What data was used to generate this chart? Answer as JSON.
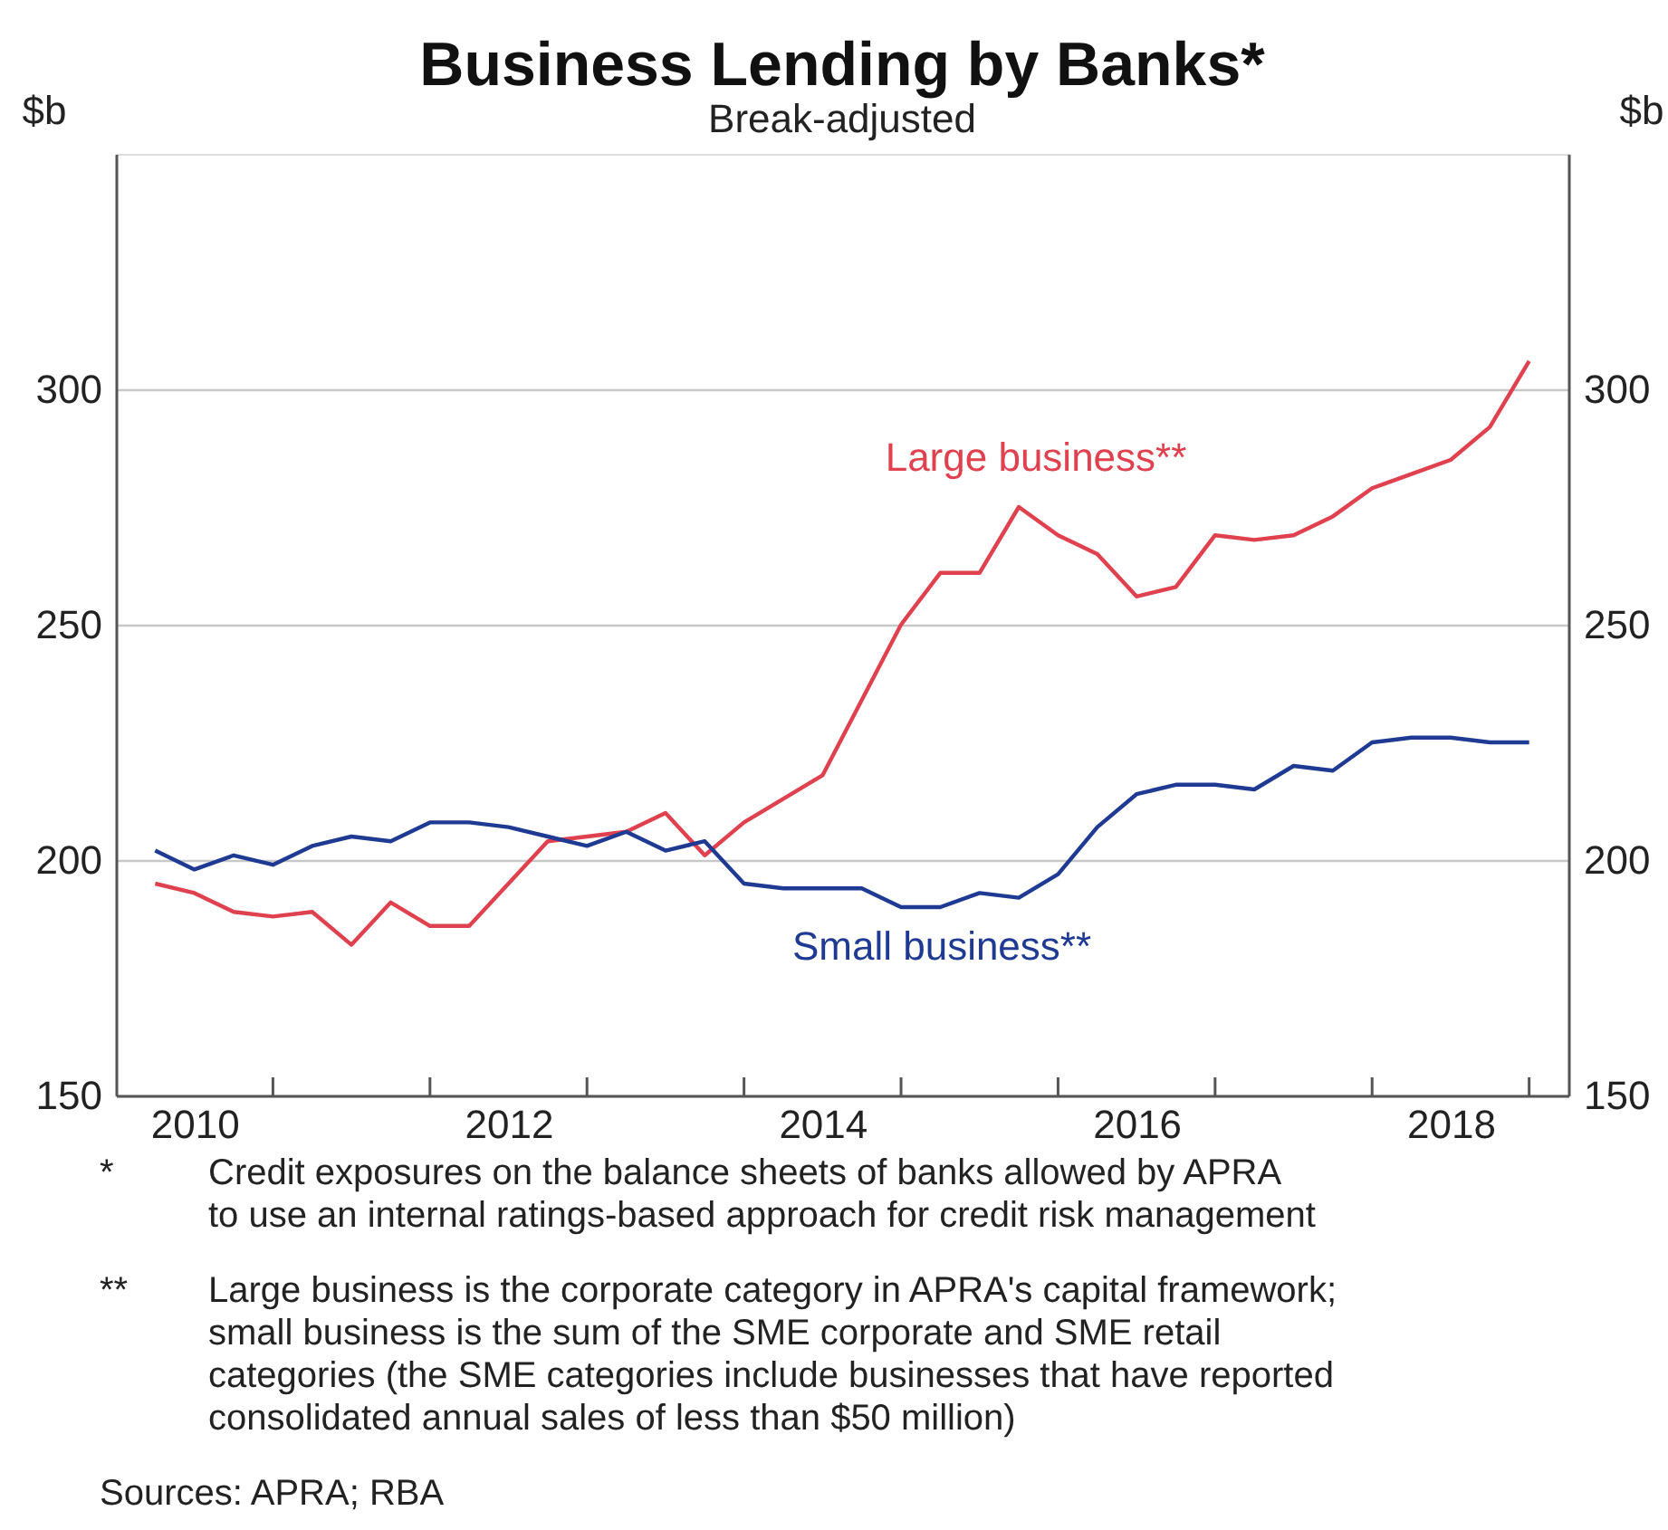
{
  "chart_data": {
    "type": "line",
    "title": "Business Lending by Banks*",
    "subtitle": "Break-adjusted",
    "ylabel": "$b",
    "y2label": "$b",
    "x": [
      2010.25,
      2010.5,
      2010.75,
      2011,
      2011.25,
      2011.5,
      2011.75,
      2012,
      2012.25,
      2012.5,
      2012.75,
      2013,
      2013.25,
      2013.5,
      2013.75,
      2014,
      2014.25,
      2014.5,
      2014.75,
      2015,
      2015.25,
      2015.5,
      2015.75,
      2016,
      2016.25,
      2016.5,
      2016.75,
      2017,
      2017.25,
      2017.5,
      2017.75,
      2018,
      2018.25,
      2018.5,
      2018.75,
      2019
    ],
    "series": [
      {
        "name": "Large business**",
        "color": "#e0414f",
        "values": [
          195,
          193,
          189,
          188,
          189,
          182,
          191,
          186,
          186,
          195,
          204,
          205,
          206,
          210,
          201,
          208,
          213,
          218,
          234,
          250,
          261,
          261,
          275,
          269,
          265,
          256,
          258,
          269,
          268,
          269,
          273,
          279,
          282,
          285,
          292,
          306
        ]
      },
      {
        "name": "Small business**",
        "color": "#1f3a93",
        "values": [
          202,
          198,
          201,
          199,
          203,
          205,
          204,
          208,
          208,
          207,
          205,
          203,
          206,
          202,
          204,
          195,
          194,
          194,
          194,
          190,
          190,
          193,
          192,
          197,
          207,
          214,
          216,
          216,
          215,
          220,
          219,
          225,
          226,
          226,
          225,
          225
        ]
      }
    ],
    "xlim": [
      2010,
      2019.25
    ],
    "xticks": [
      {
        "value": 2010.5,
        "label": "2010"
      },
      {
        "value": 2011,
        "label": null
      },
      {
        "value": 2012,
        "label": null
      },
      {
        "value": 2012.5,
        "label": "2012"
      },
      {
        "value": 2013,
        "label": null
      },
      {
        "value": 2014,
        "label": null
      },
      {
        "value": 2014.5,
        "label": "2014"
      },
      {
        "value": 2015,
        "label": null
      },
      {
        "value": 2016,
        "label": null
      },
      {
        "value": 2016.5,
        "label": "2016"
      },
      {
        "value": 2017,
        "label": null
      },
      {
        "value": 2018,
        "label": null
      },
      {
        "value": 2018.5,
        "label": "2018"
      },
      {
        "value": 2019,
        "label": null
      }
    ],
    "ylim": [
      150,
      350
    ],
    "yticks": [
      150,
      200,
      250,
      300
    ],
    "y2lim": [
      150,
      350
    ],
    "y2ticks": [
      150,
      200,
      250,
      300
    ],
    "grid": "y",
    "line_style": "solid",
    "marker": "none",
    "annotations": [
      "*\tCredit exposures on the balance sheets of banks allowed by APRA\nto use an internal ratings-based approach for credit risk management",
      "**\tLarge business is the corporate category in APRA's capital framework;\nsmall business is the sum of the SME corporate and SME retail\ncategories (the SME categories include businesses that have reported\nconsolidated annual sales of less than $50 million)",
      "Sources: APRA; RBA"
    ]
  }
}
